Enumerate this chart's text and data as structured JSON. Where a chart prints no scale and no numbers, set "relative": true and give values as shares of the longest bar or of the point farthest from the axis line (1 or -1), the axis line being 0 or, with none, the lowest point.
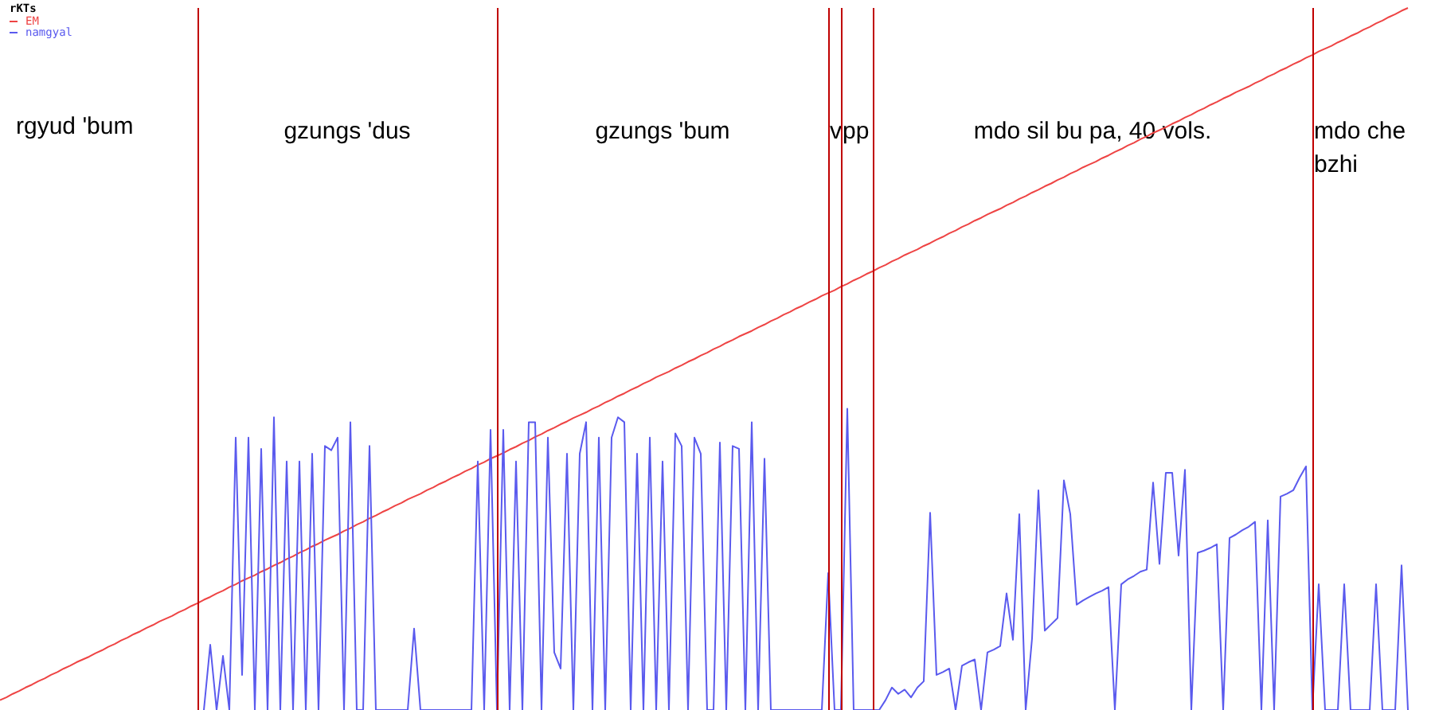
{
  "chart_data": {
    "type": "line",
    "relative": true,
    "legend_title": "rKTs",
    "legend": "top left",
    "tick_labels": false,
    "marker": "none",
    "categories": [
      null,
      null,
      null,
      null,
      null,
      null,
      null,
      null,
      null,
      null,
      null,
      null,
      null,
      null,
      null,
      null,
      null,
      null,
      null,
      null,
      null,
      null,
      null,
      null,
      null,
      null,
      null,
      null,
      null,
      null,
      null,
      null,
      null,
      null,
      null,
      null,
      null,
      null,
      null,
      null,
      null,
      null,
      null,
      null,
      null,
      null,
      null,
      null,
      null,
      null,
      null,
      null,
      null,
      null,
      null,
      null,
      null,
      null,
      null,
      null,
      null,
      null,
      null,
      null,
      null,
      null,
      null,
      null,
      null,
      null,
      null,
      null,
      null,
      null,
      null,
      null,
      null,
      null,
      null,
      null,
      null,
      null,
      null,
      null,
      null,
      null,
      null,
      null,
      null,
      null,
      null,
      null,
      null,
      null,
      null,
      null,
      null,
      null,
      null,
      null,
      null,
      null,
      null,
      null,
      null,
      null,
      null,
      null,
      null,
      null,
      null,
      null,
      null,
      null,
      null,
      null,
      null,
      null,
      null,
      null,
      null,
      null,
      null,
      null,
      null,
      null,
      null,
      null,
      null,
      null,
      null,
      null,
      null,
      null,
      null,
      null,
      null,
      null,
      null,
      null,
      null,
      null,
      null,
      null,
      null,
      null,
      null,
      null,
      null,
      null,
      null,
      null,
      null,
      null,
      null,
      null,
      null,
      null,
      null,
      null,
      null,
      null,
      null,
      null,
      null,
      null,
      null,
      null,
      null,
      null,
      null,
      null,
      null,
      null,
      null,
      null,
      null,
      null,
      null,
      null,
      null,
      null,
      null,
      null,
      null,
      null,
      null,
      null,
      null,
      null,
      null,
      null,
      null,
      null,
      null,
      null,
      null,
      null,
      null,
      null,
      null,
      null,
      null,
      null,
      null,
      null,
      null,
      null,
      null,
      null,
      null,
      null,
      null,
      null,
      null,
      null,
      null,
      null,
      null,
      null,
      null,
      null,
      null,
      null,
      null,
      null
    ],
    "annotations": [
      "rgyud 'bum",
      "gzungs 'dus",
      "gzungs 'bum",
      "v",
      "pp",
      "mdo sil bu pa, 40 vols.",
      "mdo che bzhi"
    ],
    "series": [
      {
        "name": "EM",
        "color": "#ee4444",
        "values": [
          0.014,
          0.018,
          0.023,
          0.027,
          0.032,
          0.036,
          0.041,
          0.045,
          0.05,
          0.054,
          0.059,
          0.063,
          0.068,
          0.072,
          0.076,
          0.081,
          0.085,
          0.09,
          0.094,
          0.099,
          0.103,
          0.108,
          0.112,
          0.117,
          0.121,
          0.126,
          0.13,
          0.134,
          0.139,
          0.143,
          0.148,
          0.152,
          0.157,
          0.161,
          0.166,
          0.17,
          0.175,
          0.179,
          0.184,
          0.188,
          0.192,
          0.197,
          0.201,
          0.206,
          0.21,
          0.215,
          0.219,
          0.224,
          0.228,
          0.233,
          0.237,
          0.242,
          0.246,
          0.25,
          0.255,
          0.259,
          0.264,
          0.268,
          0.273,
          0.277,
          0.282,
          0.286,
          0.291,
          0.295,
          0.3,
          0.304,
          0.308,
          0.313,
          0.317,
          0.322,
          0.326,
          0.331,
          0.335,
          0.34,
          0.344,
          0.349,
          0.353,
          0.358,
          0.362,
          0.366,
          0.371,
          0.375,
          0.38,
          0.384,
          0.389,
          0.393,
          0.398,
          0.402,
          0.407,
          0.411,
          0.416,
          0.42,
          0.424,
          0.429,
          0.433,
          0.438,
          0.442,
          0.447,
          0.451,
          0.456,
          0.46,
          0.465,
          0.469,
          0.474,
          0.478,
          0.482,
          0.487,
          0.491,
          0.496,
          0.5,
          0.505,
          0.509,
          0.514,
          0.518,
          0.523,
          0.527,
          0.532,
          0.536,
          0.54,
          0.545,
          0.549,
          0.554,
          0.558,
          0.563,
          0.567,
          0.572,
          0.576,
          0.581,
          0.585,
          0.59,
          0.594,
          0.598,
          0.603,
          0.607,
          0.612,
          0.616,
          0.621,
          0.625,
          0.63,
          0.634,
          0.639,
          0.643,
          0.648,
          0.652,
          0.656,
          0.661,
          0.665,
          0.67,
          0.674,
          0.679,
          0.683,
          0.688,
          0.692,
          0.697,
          0.701,
          0.706,
          0.71,
          0.714,
          0.719,
          0.723,
          0.728,
          0.732,
          0.737,
          0.741,
          0.746,
          0.75,
          0.755,
          0.759,
          0.764,
          0.768,
          0.773,
          0.777,
          0.781,
          0.786,
          0.79,
          0.795,
          0.799,
          0.804,
          0.808,
          0.813,
          0.817,
          0.822,
          0.826,
          0.83,
          0.835,
          0.839,
          0.844,
          0.848,
          0.853,
          0.857,
          0.862,
          0.866,
          0.871,
          0.875,
          0.88,
          0.884,
          0.888,
          0.893,
          0.897,
          0.902,
          0.906,
          0.911,
          0.915,
          0.92,
          0.924,
          0.929,
          0.933,
          0.938,
          0.942,
          0.946,
          0.951,
          0.955,
          0.96,
          0.964,
          0.969,
          0.973,
          0.978,
          0.982,
          0.987,
          0.991,
          0.996,
          1,
          null,
          null,
          null,
          null
        ]
      },
      {
        "name": "namgyal",
        "color": "#5a5aee",
        "values": [
          null,
          null,
          null,
          null,
          null,
          null,
          null,
          null,
          null,
          null,
          null,
          null,
          null,
          null,
          null,
          null,
          null,
          null,
          null,
          null,
          null,
          null,
          null,
          null,
          null,
          null,
          null,
          null,
          null,
          null,
          null,
          null,
          0,
          0.093,
          0,
          0.077,
          0,
          0.388,
          0.05,
          0.388,
          0,
          0.372,
          0,
          0.417,
          0,
          0.354,
          0,
          0.354,
          0,
          0.365,
          0,
          0.376,
          0.37,
          0.388,
          0,
          0.41,
          0,
          0,
          0.376,
          0,
          0,
          0,
          0,
          0,
          0,
          0.116,
          0,
          0,
          0,
          0,
          0,
          0,
          0,
          0,
          0,
          0.354,
          0,
          0.399,
          0,
          0.399,
          0,
          0.354,
          0,
          0.41,
          0.41,
          0,
          0.388,
          0.082,
          0.059,
          0.365,
          0,
          0.365,
          0.41,
          0,
          0.388,
          0,
          0.388,
          0.417,
          0.41,
          0,
          0.365,
          0,
          0.388,
          0,
          0.354,
          0,
          0.394,
          0.376,
          0,
          0.388,
          0.365,
          0,
          0,
          0.381,
          0,
          0.376,
          0.372,
          0,
          0.41,
          0,
          0.358,
          0,
          0,
          0,
          0,
          0,
          0,
          0,
          0,
          0,
          0.195,
          0,
          0,
          0.429,
          0,
          0,
          0,
          0,
          0,
          0.014,
          0.032,
          0.023,
          0.029,
          0.018,
          0.032,
          0.041,
          0.281,
          0.05,
          0.054,
          0.059,
          0,
          0.063,
          0.068,
          0.072,
          0,
          0.082,
          0.086,
          0.091,
          0.166,
          0.1,
          0.279,
          0,
          0.102,
          0.313,
          0.113,
          0.122,
          0.131,
          0.327,
          0.279,
          0.15,
          0.156,
          0.161,
          0.166,
          0.17,
          0.175,
          0,
          0.179,
          0.186,
          0.191,
          0.197,
          0.2,
          0.324,
          0.208,
          0.338,
          0.338,
          0.22,
          0.342,
          0,
          0.224,
          0.227,
          0.231,
          0.236,
          0,
          0.245,
          0.25,
          0.256,
          0.261,
          0.268,
          0,
          0.27,
          0,
          0.304,
          0.308,
          0.313,
          0.331,
          0.347,
          0,
          0.179,
          0,
          0,
          0,
          0.179,
          0,
          0,
          0,
          0,
          0.179,
          0,
          0,
          0,
          0.206,
          0,
          null,
          null,
          null,
          null
        ]
      }
    ]
  }
}
